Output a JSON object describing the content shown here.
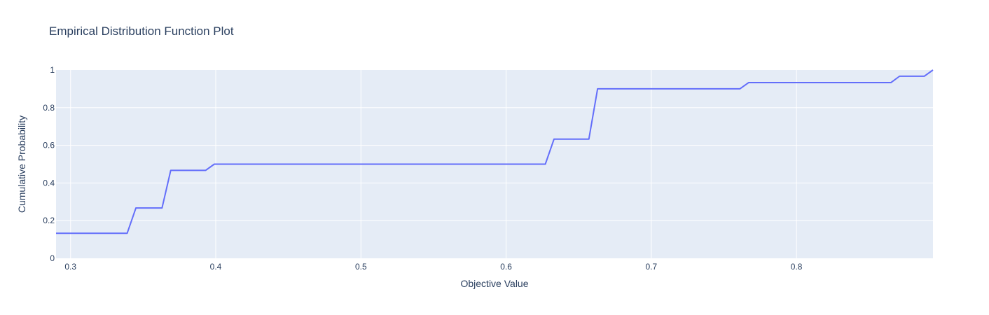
{
  "chart_data": {
    "type": "line",
    "title": "Empirical Distribution Function Plot",
    "xlabel": "Objective Value",
    "ylabel": "Cumulative Probability",
    "xlim": [
      0.29,
      0.894
    ],
    "ylim": [
      0,
      1
    ],
    "x_ticks": [
      0.3,
      0.4,
      0.5,
      0.6,
      0.7,
      0.8
    ],
    "x_tick_labels": [
      "0.3",
      "0.4",
      "0.5",
      "0.6",
      "0.7",
      "0.8"
    ],
    "y_ticks": [
      0,
      0.2,
      0.4,
      0.6,
      0.8,
      1
    ],
    "y_tick_labels": [
      "0",
      "0.2",
      "0.4",
      "0.6",
      "0.8",
      "1"
    ],
    "grid": true,
    "colors": {
      "plot_background": "#e5ecf6",
      "line": "#636efa",
      "text": "#2a3f5f"
    },
    "series": [
      {
        "x": [
          0.29,
          0.339,
          0.345,
          0.363,
          0.369,
          0.393,
          0.399,
          0.627,
          0.633,
          0.657,
          0.663,
          0.761,
          0.767,
          0.865,
          0.871,
          0.888,
          0.894
        ],
        "y": [
          0.133,
          0.133,
          0.267,
          0.267,
          0.467,
          0.467,
          0.5,
          0.5,
          0.633,
          0.633,
          0.9,
          0.9,
          0.933,
          0.933,
          0.967,
          0.967,
          1.0
        ]
      }
    ]
  }
}
